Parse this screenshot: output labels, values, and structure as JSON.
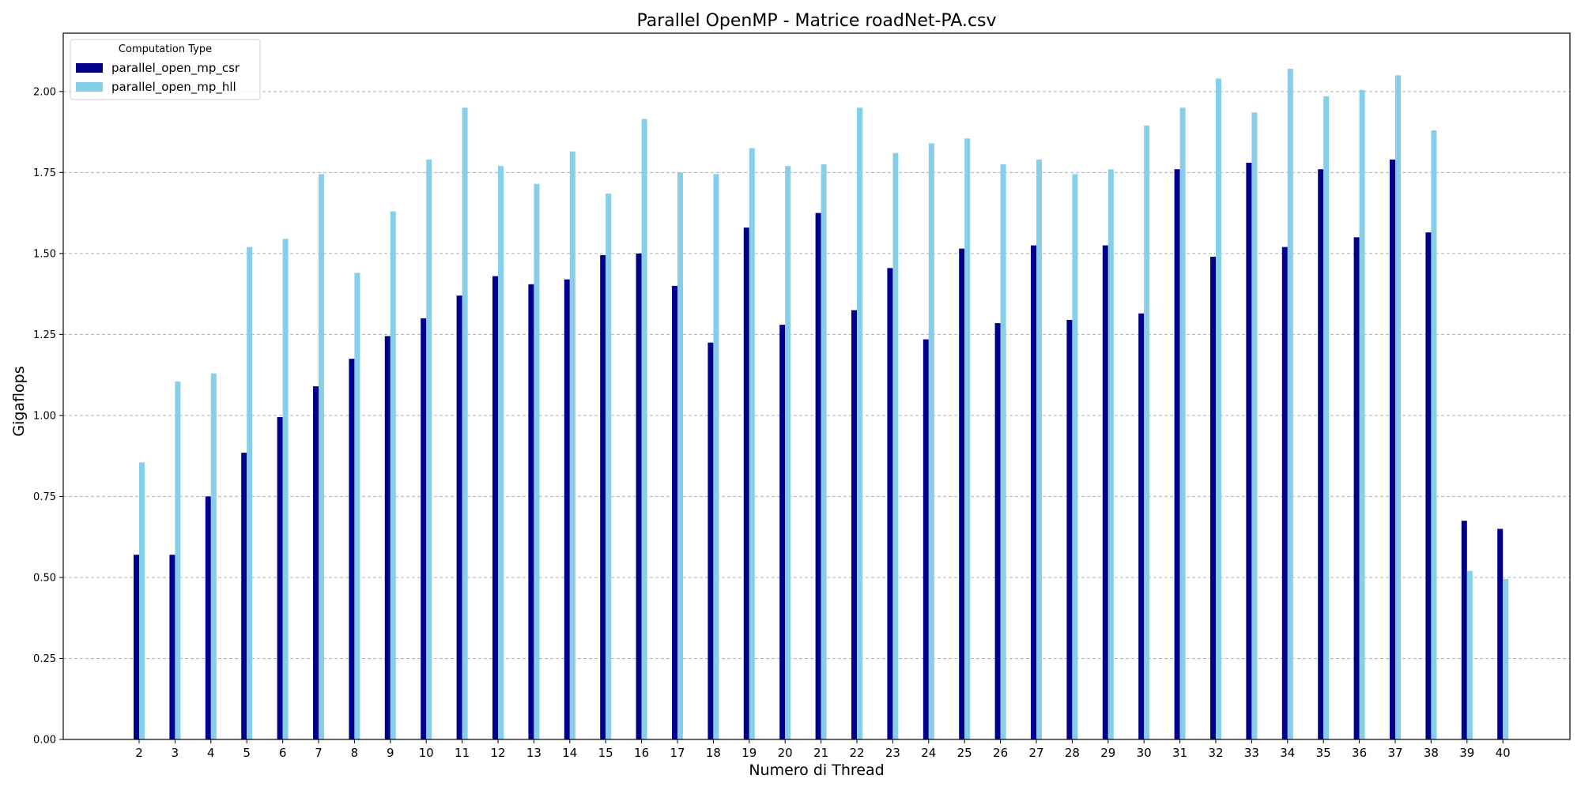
{
  "chart_data": {
    "type": "bar",
    "title": "Parallel OpenMP - Matrice roadNet-PA.csv",
    "xlabel": "Numero di Thread",
    "ylabel": "Gigaflops",
    "ylim": [
      0,
      2.18
    ],
    "yticks": [
      "0.00",
      "0.25",
      "0.50",
      "0.75",
      "1.00",
      "1.25",
      "1.50",
      "1.75",
      "2.00"
    ],
    "grid": "horizontal-dashed",
    "legend": {
      "title": "Computation Type",
      "placement": "top-left"
    },
    "categories": [
      "2",
      "3",
      "4",
      "5",
      "6",
      "7",
      "8",
      "9",
      "10",
      "11",
      "12",
      "13",
      "14",
      "15",
      "16",
      "17",
      "18",
      "19",
      "20",
      "21",
      "22",
      "23",
      "24",
      "25",
      "26",
      "27",
      "28",
      "29",
      "30",
      "31",
      "32",
      "33",
      "34",
      "35",
      "36",
      "37",
      "38",
      "39",
      "40"
    ],
    "series": [
      {
        "name": "parallel_open_mp_csr",
        "color": "#00008b",
        "values": [
          0.57,
          0.57,
          0.75,
          0.885,
          0.995,
          1.09,
          1.175,
          1.245,
          1.3,
          1.37,
          1.43,
          1.405,
          1.42,
          1.495,
          1.5,
          1.4,
          1.225,
          1.58,
          1.28,
          1.625,
          1.325,
          1.455,
          1.235,
          1.515,
          1.285,
          1.525,
          1.295,
          1.525,
          1.315,
          1.76,
          1.49,
          1.78,
          1.52,
          1.76,
          1.55,
          1.79,
          1.565,
          0.675,
          0.65
        ]
      },
      {
        "name": "parallel_open_mp_hll",
        "color": "#87ceeb",
        "values": [
          0.855,
          1.105,
          1.13,
          1.52,
          1.545,
          1.745,
          1.44,
          1.63,
          1.79,
          1.95,
          1.77,
          1.715,
          1.815,
          1.685,
          1.915,
          1.75,
          1.745,
          1.825,
          1.77,
          1.775,
          1.95,
          1.81,
          1.84,
          1.855,
          1.775,
          1.79,
          1.745,
          1.76,
          1.895,
          1.95,
          2.04,
          1.935,
          2.07,
          1.985,
          2.005,
          2.05,
          1.88,
          0.52,
          0.495
        ]
      }
    ]
  }
}
